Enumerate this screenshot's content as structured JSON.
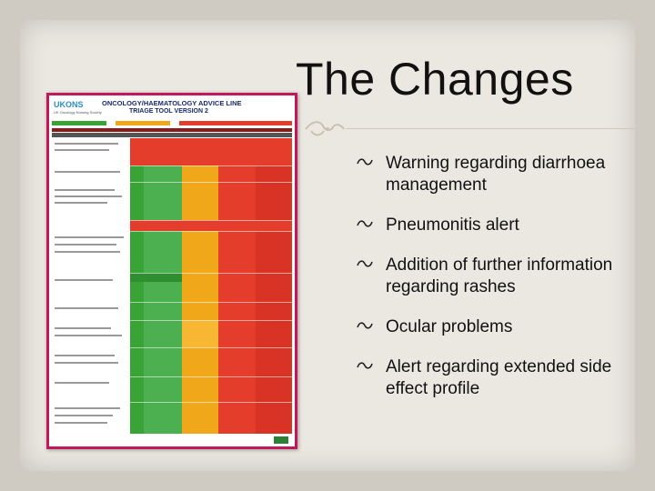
{
  "slide": {
    "title": "The Changes",
    "bullets": [
      "Warning regarding diarrhoea management",
      "Pneumonitis alert",
      "Addition of further information regarding rashes",
      "Ocular problems",
      "Alert regarding extended side effect profile"
    ]
  },
  "poster": {
    "logo": "UKONS",
    "logo_sub": "UK Oncology Nursing Society",
    "title": "ONCOLOGY/HAEMATOLOGY ADVICE LINE",
    "subtitle": "TRIAGE TOOL VERSION 2",
    "colors": {
      "border": "#c2185b",
      "green": "#3aa335",
      "amber": "#f0a81a",
      "red": "#e53d2b"
    }
  }
}
